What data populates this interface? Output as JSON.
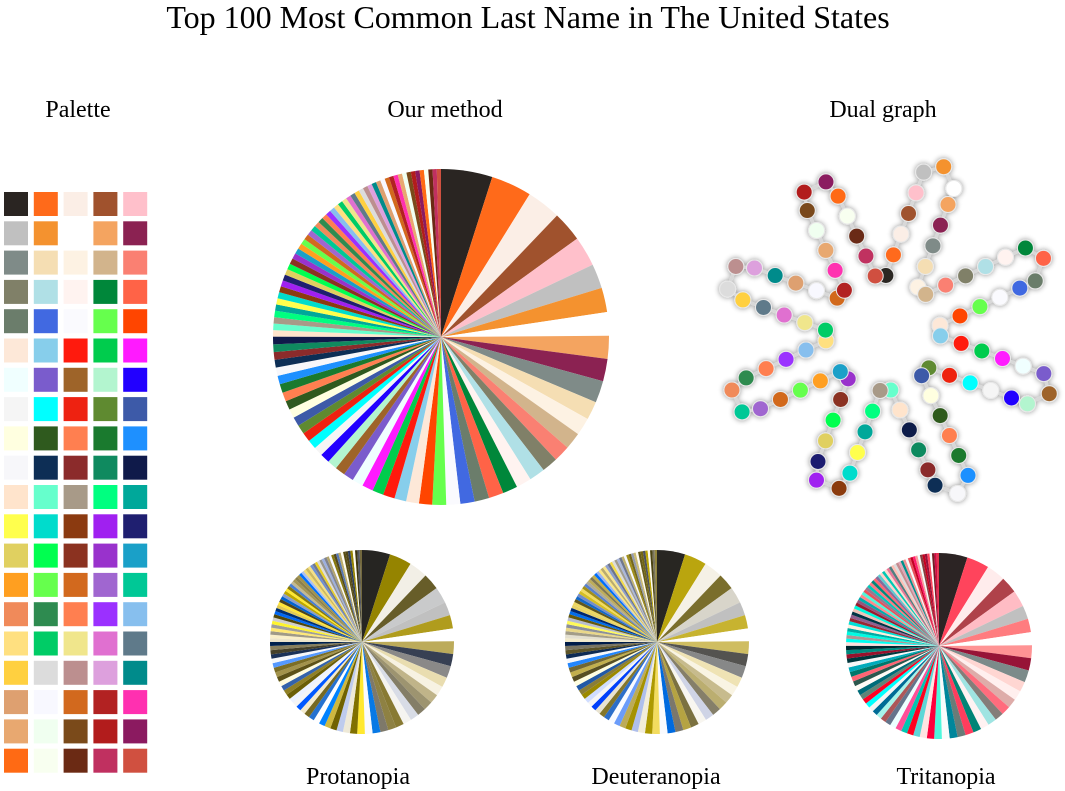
{
  "title": "Top 100 Most Common Last Name in The United States",
  "labels": {
    "palette": "Palette",
    "method": "Our method",
    "dual": "Dual graph",
    "protanopia": "Protanopia",
    "deuteranopia": "Deuteranopia",
    "tritanopia": "Tritanopia"
  },
  "chart_data": {
    "type": "pie",
    "values": [
      2442,
      1933,
      1625,
      1437,
      1425,
      1166,
      1161,
      1116,
      1095,
      1060,
      1043,
      874,
      841,
      801,
      784,
      756,
      751,
      724,
      708,
      702,
      693,
      681,
      664,
      660,
      624,
      612,
      562,
      557,
      531,
      529,
      523,
      484,
      482,
      465,
      458,
      439,
      437,
      437,
      434,
      433,
      430,
      427,
      424,
      419,
      407,
      391,
      371,
      367,
      362,
      361,
      309,
      306,
      304,
      303,
      299,
      298,
      295,
      288,
      287,
      286,
      285,
      277,
      277,
      270,
      267,
      266,
      264,
      262,
      262,
      259,
      257,
      255,
      250,
      244,
      243,
      241,
      238,
      236,
      233,
      232,
      228,
      227,
      225,
      224,
      222,
      219,
      218,
      215,
      213,
      211,
      210,
      209,
      209,
      208,
      207,
      206,
      205,
      202,
      200,
      197
    ],
    "colors": [
      "#2a2522",
      "#ff6a1a",
      "#fbeee6",
      "#a0522d",
      "#ffc0cb",
      "#c0c0c0",
      "#f4922f",
      "#ffffff",
      "#f4a460",
      "#8b2252",
      "#7f8b88",
      "#f5deb3",
      "#fdf2e3",
      "#d2b48c",
      "#fa8072",
      "#808068",
      "#b0e0e6",
      "#fff3f0",
      "#00873a",
      "#ff6347",
      "#6b7d6b",
      "#4169e1",
      "#fafafe",
      "#66ff4d",
      "#ff4500",
      "#fde8d8",
      "#87ceeb",
      "#ff1a0d",
      "#00cc4d",
      "#ff1aff",
      "#f0ffff",
      "#7a5ccc",
      "#9e6429",
      "#b3f5cf",
      "#2200ff",
      "#f5f5f5",
      "#00ffff",
      "#ee2211",
      "#5f8a30",
      "#3d5aa8",
      "#ffffe0",
      "#2f5a1e",
      "#ff7f50",
      "#1a7a2e",
      "#1e90ff",
      "#f7f7fa",
      "#0d2e55",
      "#8b2b2b",
      "#0f8a5f",
      "#0f1a4a",
      "#ffe4cc",
      "#66ffcc",
      "#a89a88",
      "#00ff80",
      "#00a89a",
      "#ffff4d",
      "#00dccc",
      "#8b3a10",
      "#a020f0",
      "#1f1f70",
      "#e0d060",
      "#00ff50",
      "#8b3220",
      "#9932cc",
      "#1aa0c8",
      "#ff9f20",
      "#66ff4d",
      "#d2691e",
      "#a066d0",
      "#00c896",
      "#f08a5a",
      "#2e8b50",
      "#ff7f50",
      "#9b30ff",
      "#87bfee",
      "#ffe080",
      "#00cc66",
      "#f0e68c",
      "#e070d0",
      "#5f7a8a",
      "#ffd040",
      "#dcdcdc",
      "#bc8f8f",
      "#dda0dd",
      "#008b8b",
      "#dea070",
      "#f8f8ff",
      "#d2691e",
      "#b22222",
      "#ff30b0",
      "#e8a870",
      "#f0fff0",
      "#7a4a1a",
      "#b21c1c",
      "#8b1a60",
      "#ff6a14",
      "#f8fff0",
      "#6b2a14",
      "#c03060",
      "#d05040"
    ]
  }
}
